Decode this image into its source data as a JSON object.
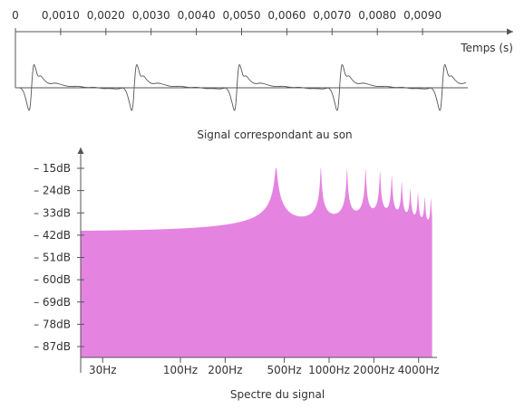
{
  "chart_data": [
    {
      "type": "line",
      "title": "",
      "caption": "Signal correspondant au son",
      "xlabel": "Temps (s)",
      "x_tick_labels": [
        "0",
        "0,0010",
        "0,0020",
        "0,0030",
        "0,0040",
        "0,0050",
        "0,0060",
        "0,0070",
        "0,0080",
        "0,0090"
      ],
      "x_ticks": [
        0,
        0.001,
        0.002,
        0.003,
        0.004,
        0.005,
        0.006,
        0.007,
        0.008,
        0.009
      ],
      "xlim": [
        0,
        0.01
      ],
      "period_s": 0.00227,
      "waveform_cycle": [
        [
          0.0,
          0.0
        ],
        [
          0.03,
          -0.12
        ],
        [
          0.06,
          -0.55
        ],
        [
          0.085,
          -1.0
        ],
        [
          0.1,
          -0.6
        ],
        [
          0.115,
          0.45
        ],
        [
          0.13,
          1.0
        ],
        [
          0.15,
          0.75
        ],
        [
          0.17,
          0.42
        ],
        [
          0.2,
          0.5
        ],
        [
          0.23,
          0.3
        ],
        [
          0.28,
          0.14
        ],
        [
          0.34,
          0.2
        ],
        [
          0.4,
          0.12
        ],
        [
          0.48,
          0.04
        ],
        [
          0.56,
          0.07
        ],
        [
          0.64,
          0.0
        ],
        [
          0.72,
          0.03
        ],
        [
          0.8,
          -0.04
        ],
        [
          0.88,
          -0.02
        ],
        [
          0.94,
          -0.06
        ],
        [
          1.0,
          0.0
        ]
      ],
      "cycle_starts_s": [
        0.00011,
        0.00238,
        0.00465,
        0.00692,
        0.00919
      ]
    },
    {
      "type": "area",
      "title": "",
      "caption": "Spectre du signal",
      "x_scale": "log",
      "x_tick_labels": [
        "30Hz",
        "100Hz",
        "200Hz",
        "500Hz",
        "1000Hz",
        "2000Hz",
        "4000Hz"
      ],
      "x_ticks": [
        30,
        100,
        200,
        500,
        1000,
        2000,
        4000
      ],
      "xlim": [
        20,
        5300
      ],
      "y_tick_labels": [
        "– 15dB",
        "– 24dB",
        "– 33dB",
        "– 42dB",
        "– 51dB",
        "– 60dB",
        "– 69dB",
        "– 78dB",
        "– 87dB"
      ],
      "y_ticks": [
        -15,
        -24,
        -33,
        -42,
        -51,
        -60,
        -69,
        -78,
        -87
      ],
      "ylim": [
        -90,
        -12
      ],
      "baseline_db": -81,
      "peaks": [
        {
          "freq_hz": 440,
          "db": -15
        },
        {
          "freq_hz": 880,
          "db": -15
        },
        {
          "freq_hz": 1320,
          "db": -16
        },
        {
          "freq_hz": 1760,
          "db": -16
        },
        {
          "freq_hz": 2200,
          "db": -17
        },
        {
          "freq_hz": 2640,
          "db": -19
        },
        {
          "freq_hz": 3080,
          "db": -22
        },
        {
          "freq_hz": 3520,
          "db": -25
        },
        {
          "freq_hz": 3960,
          "db": -27
        },
        {
          "freq_hz": 4400,
          "db": -29
        },
        {
          "freq_hz": 4840,
          "db": -29
        }
      ],
      "fill_color": "#e584e0",
      "axis_color": "#555555"
    }
  ]
}
